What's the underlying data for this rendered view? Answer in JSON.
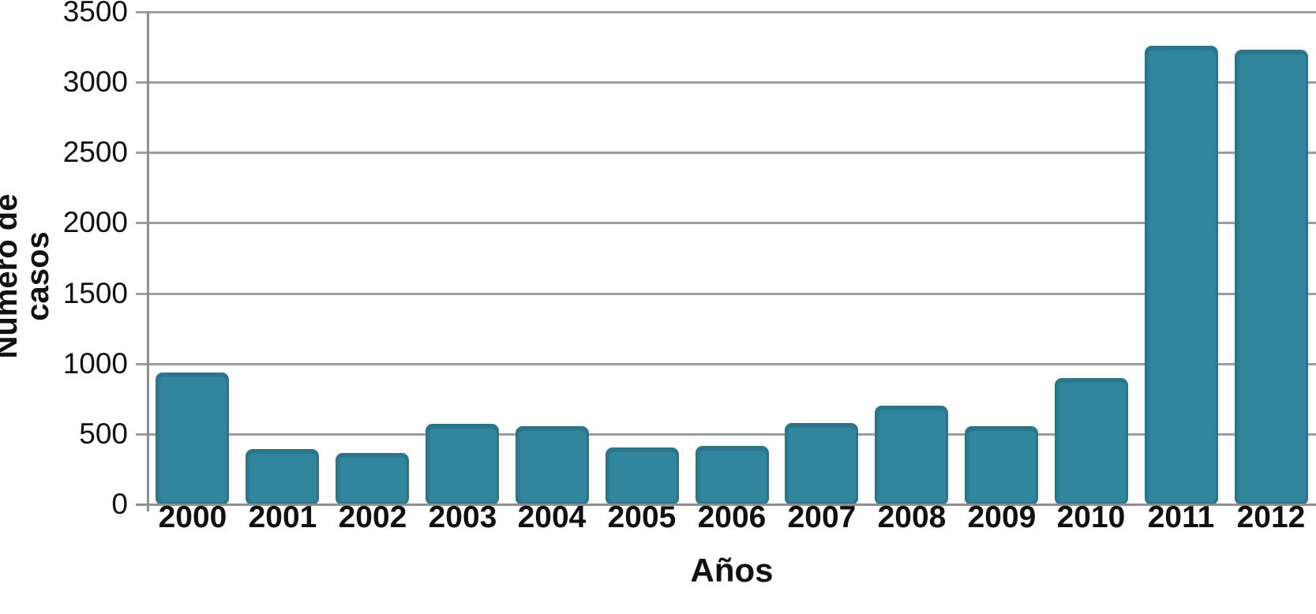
{
  "chart_data": {
    "type": "bar",
    "title": "",
    "xlabel": "Años",
    "ylabel": "Número de casos",
    "categories": [
      "2000",
      "2001",
      "2002",
      "2003",
      "2004",
      "2005",
      "2006",
      "2007",
      "2008",
      "2009",
      "2010",
      "2011",
      "2012"
    ],
    "values": [
      935,
      390,
      365,
      570,
      555,
      405,
      415,
      580,
      700,
      555,
      900,
      3260,
      3230
    ],
    "ylim": [
      0,
      3500
    ],
    "yticks": [
      0,
      500,
      1000,
      1500,
      2000,
      2500,
      3000,
      3500
    ],
    "grid": true,
    "legend": "none",
    "bar_color": "#31859C",
    "bar_edge_color": "#2c7487",
    "gridline_color": "#9d9d9d",
    "axis_color": "#8f8f8f",
    "text_color": "#111111"
  }
}
